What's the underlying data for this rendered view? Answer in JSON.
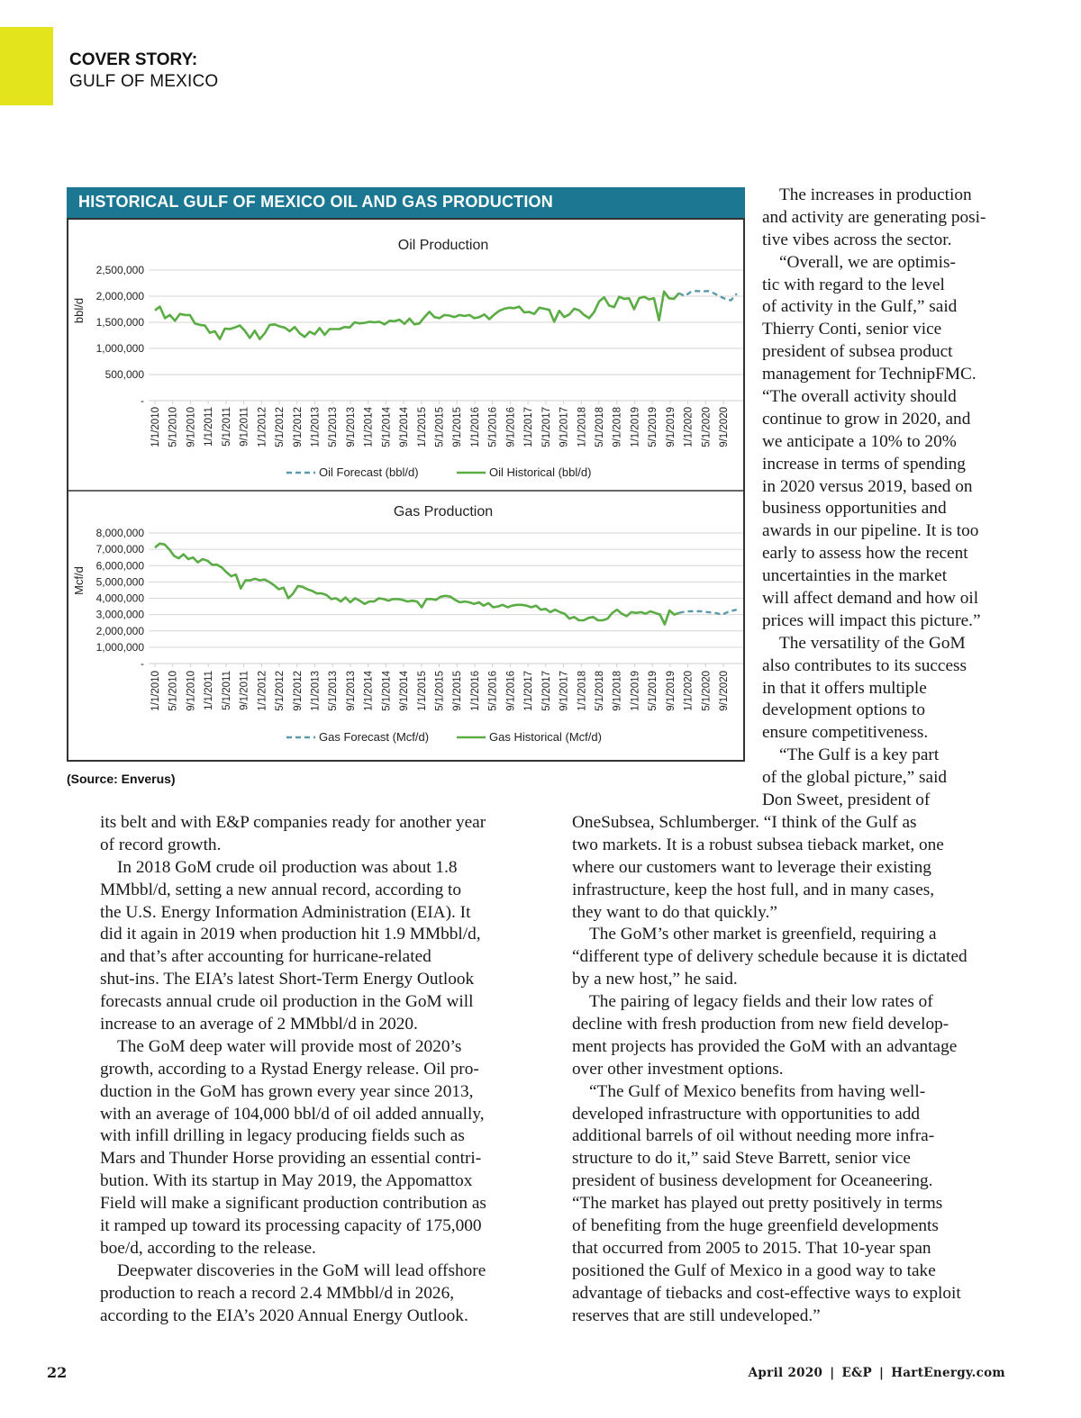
{
  "header": {
    "kicker": "COVER STORY:",
    "section": "GULF OF MEXICO",
    "accent_color": "#e4e41c"
  },
  "figure": {
    "title": "HISTORICAL GULF OF MEXICO OIL AND GAS PRODUCTION",
    "source": "(Source: Enverus)",
    "header_color": "#1b7792"
  },
  "chart_data": [
    {
      "type": "line",
      "title": "Oil Production",
      "ylabel": "bbl/d",
      "xlabel": "",
      "ylim": [
        0,
        2500000
      ],
      "y_ticks": [
        0,
        500000,
        1000000,
        1500000,
        2000000,
        2500000
      ],
      "y_tick_labels": [
        "-",
        "500,000",
        "1,000,000",
        "1,500,000",
        "2,000,000",
        "2,500,000"
      ],
      "x_tick_labels": [
        "1/1/2010",
        "5/1/2010",
        "9/1/2010",
        "1/1/2011",
        "5/1/2011",
        "9/1/2011",
        "1/1/2012",
        "5/1/2012",
        "9/1/2012",
        "1/1/2013",
        "5/1/2013",
        "9/1/2013",
        "1/1/2014",
        "5/1/2014",
        "9/1/2014",
        "1/1/2015",
        "5/1/2015",
        "9/1/2015",
        "1/1/2016",
        "5/1/2016",
        "9/1/2016",
        "1/1/2017",
        "5/1/2017",
        "9/1/2017",
        "1/1/2018",
        "5/1/2018",
        "9/1/2018",
        "1/1/2019",
        "5/1/2019",
        "9/1/2019",
        "1/1/2020",
        "5/1/2020",
        "9/1/2020"
      ],
      "grid": true,
      "legend_position": "bottom",
      "series": [
        {
          "name": "Oil Forecast (bbl/d)",
          "style": "dashed",
          "color": "#5b9aaa",
          "start": "2019-11",
          "end": "2020-12",
          "values": [
            2060000,
            2000000,
            2080000,
            2100000,
            2090000,
            2100000,
            2060000,
            2000000,
            1950000,
            1920000,
            2050000
          ]
        },
        {
          "name": "Oil Historical (bbl/d)",
          "style": "solid",
          "color": "#5aac44",
          "start": "2010-01",
          "end": "2019-11",
          "values": [
            1730000,
            1800000,
            1580000,
            1640000,
            1530000,
            1660000,
            1640000,
            1640000,
            1480000,
            1450000,
            1440000,
            1300000,
            1330000,
            1180000,
            1380000,
            1370000,
            1400000,
            1440000,
            1340000,
            1200000,
            1340000,
            1180000,
            1290000,
            1450000,
            1460000,
            1420000,
            1400000,
            1330000,
            1410000,
            1290000,
            1220000,
            1320000,
            1270000,
            1390000,
            1260000,
            1370000,
            1370000,
            1370000,
            1410000,
            1400000,
            1500000,
            1480000,
            1490000,
            1510000,
            1500000,
            1510000,
            1460000,
            1530000,
            1520000,
            1550000,
            1470000,
            1570000,
            1460000,
            1480000,
            1600000,
            1700000,
            1600000,
            1580000,
            1640000,
            1630000,
            1600000,
            1640000,
            1620000,
            1640000,
            1580000,
            1600000,
            1650000,
            1560000,
            1650000,
            1720000,
            1760000,
            1780000,
            1770000,
            1800000,
            1690000,
            1700000,
            1660000,
            1780000,
            1760000,
            1740000,
            1510000,
            1720000,
            1600000,
            1650000,
            1760000,
            1730000,
            1640000,
            1580000,
            1700000,
            1900000,
            1980000,
            1820000,
            1790000,
            1990000,
            1950000,
            1960000,
            1750000,
            1960000,
            1990000,
            1940000,
            1960000,
            1540000,
            2090000,
            1960000,
            1950000,
            2060000
          ]
        }
      ]
    },
    {
      "type": "line",
      "title": "Gas Production",
      "ylabel": "Mcf/d",
      "xlabel": "",
      "ylim": [
        0,
        8000000
      ],
      "y_ticks": [
        0,
        1000000,
        2000000,
        3000000,
        4000000,
        5000000,
        6000000,
        7000000,
        8000000
      ],
      "y_tick_labels": [
        "-",
        "1,000,000",
        "2,000,000",
        "3,000,000",
        "4,000,000",
        "5,000,000",
        "6,000,000",
        "7,000,000",
        "8,000,000"
      ],
      "x_tick_labels": [
        "1/1/2010",
        "5/1/2010",
        "9/1/2010",
        "1/1/2011",
        "5/1/2011",
        "9/1/2011",
        "1/1/2012",
        "5/1/2012",
        "9/1/2012",
        "1/1/2013",
        "5/1/2013",
        "9/1/2013",
        "1/1/2014",
        "5/1/2014",
        "9/1/2014",
        "1/1/2015",
        "5/1/2015",
        "9/1/2015",
        "1/1/2016",
        "5/1/2016",
        "9/1/2016",
        "1/1/2017",
        "5/1/2017",
        "9/1/2017",
        "1/1/2018",
        "5/1/2018",
        "9/1/2018",
        "1/1/2019",
        "5/1/2019",
        "9/1/2019",
        "1/1/2020",
        "5/1/2020",
        "9/1/2020"
      ],
      "grid": true,
      "legend_position": "bottom",
      "series": [
        {
          "name": "Gas Forecast (Mcf/d)",
          "style": "dashed",
          "color": "#5b9aaa",
          "start": "2019-11",
          "end": "2020-12",
          "values": [
            3100000,
            3200000,
            3200000,
            3200000,
            3150000,
            3100000,
            3000000,
            3200000,
            3300000
          ]
        },
        {
          "name": "Gas Historical (Mcf/d)",
          "style": "solid",
          "color": "#5aac44",
          "start": "2010-01",
          "end": "2019-11",
          "values": [
            7100000,
            7350000,
            7300000,
            7000000,
            6600000,
            6450000,
            6700000,
            6400000,
            6500000,
            6200000,
            6400000,
            6300000,
            6050000,
            6050000,
            5900000,
            5600000,
            5350000,
            5450000,
            4600000,
            5100000,
            5100000,
            5200000,
            5100000,
            5150000,
            5000000,
            4800000,
            4550000,
            4650000,
            4000000,
            4300000,
            4750000,
            4700000,
            4550000,
            4450000,
            4300000,
            4300000,
            4200000,
            3950000,
            4000000,
            3800000,
            4050000,
            3750000,
            4000000,
            3850000,
            3650000,
            3800000,
            3800000,
            4000000,
            3950000,
            3850000,
            3950000,
            3950000,
            3900000,
            3800000,
            3850000,
            3800000,
            3450000,
            3950000,
            3950000,
            3900000,
            4100000,
            4150000,
            4100000,
            3900000,
            3750000,
            3800000,
            3750000,
            3650000,
            3750000,
            3550000,
            3700000,
            3450000,
            3500000,
            3600000,
            3450000,
            3550000,
            3600000,
            3600000,
            3550000,
            3450000,
            3550000,
            3300000,
            3350000,
            3150000,
            3300000,
            3150000,
            3050000,
            2750000,
            2850000,
            2650000,
            2650000,
            2800000,
            2850000,
            2650000,
            2650000,
            2750000,
            3100000,
            3300000,
            3050000,
            2900000,
            3150000,
            3100000,
            3150000,
            3050000,
            3200000,
            3100000,
            3000000,
            2400000,
            3250000,
            3000000,
            3100000
          ]
        }
      ]
    }
  ],
  "article": {
    "right_top": [
      [
        "The increases in production",
        "and activity are generating posi-",
        "tive vibes across the sector."
      ],
      [
        "“Overall, we are optimis-",
        "tic with regard to the level",
        "of activity in the Gulf,” said",
        "Thierry Conti, senior vice",
        "president of subsea product",
        "management for TechnipFMC.",
        "“The overall activity should",
        "continue to grow in 2020, and",
        "we anticipate a 10% to 20%",
        "increase in terms of spending",
        "in 2020 versus 2019, based on",
        "business opportunities and",
        "awards in our pipeline. It is too",
        "early to assess how the recent",
        "uncertainties in the market",
        "will affect demand and how oil",
        "prices will impact this picture.”"
      ],
      [
        "The versatility of the GoM",
        "also contributes to its success",
        "in that it offers multiple",
        "development options to",
        "ensure competitiveness."
      ],
      [
        "“The Gulf is a key part",
        "of the global picture,” said",
        "Don Sweet, president of"
      ]
    ],
    "bottom_left": [
      [
        "its belt and with E&P companies ready for another year",
        "of record growth."
      ],
      [
        "In 2018 GoM crude oil production was about 1.8",
        "MMbbl/d, setting a new annual record, according to",
        "the U.S. Energy Information Administration (EIA). It",
        "did it again in 2019 when production hit 1.9 MMbbl/d,",
        "and that’s after accounting for hurricane-related",
        "shut-ins. The EIA’s latest Short-Term Energy Outlook",
        "forecasts annual crude oil production in the GoM will",
        "increase to an average of 2 MMbbl/d in 2020."
      ],
      [
        "The GoM deep water will provide most of 2020’s",
        "growth, according to a Rystad Energy release. Oil pro-",
        "duction in the GoM has grown every year since 2013,",
        "with an average of 104,000 bbl/d of oil added annually,",
        "with infill drilling in legacy producing fields such as",
        "Mars and Thunder Horse providing an essential contri-",
        "bution. With its startup in May 2019, the Appomattox",
        "Field will make a significant production contribution as",
        "it ramped up toward its processing capacity of 175,000",
        "boe/d, according to the release."
      ],
      [
        "Deepwater discoveries in the GoM will lead offshore",
        "production to reach a record 2.4 MMbbl/d in 2026,",
        "according to the EIA’s 2020 Annual Energy Outlook."
      ]
    ],
    "bottom_right": [
      [
        "OneSubsea, Schlumberger. “I think of the Gulf as",
        "two markets. It is a robust subsea tieback market, one",
        "where our customers want to leverage their existing",
        "infrastructure, keep the host full, and in many cases,",
        "they want to do that quickly.”"
      ],
      [
        "The GoM’s other market is greenfield, requiring a",
        "“different type of delivery schedule because it is dictated",
        "by a new host,” he said."
      ],
      [
        "The pairing of legacy fields and their low rates of",
        "decline with fresh production from new field develop-",
        "ment projects has provided the GoM with an advantage",
        "over other investment options."
      ],
      [
        "“The Gulf of Mexico benefits from having well-",
        "developed infrastructure with opportunities to add",
        "additional barrels of oil without needing more infra-",
        "structure to do it,” said Steve Barrett, senior vice",
        "president of business development for Oceaneering.",
        "“The market has played out pretty positively in terms",
        "of benefiting from the huge greenfield developments",
        "that occurred from 2005 to 2015. That 10-year span",
        "positioned the Gulf of Mexico in a good way to take",
        "advantage of tiebacks and cost-effective ways to exploit",
        "reserves that are still undeveloped.”"
      ]
    ]
  },
  "footer": {
    "page_number": "22",
    "issue": "April 2020",
    "separator": "|",
    "publication": "E&P",
    "website": "HartEnergy.com"
  }
}
